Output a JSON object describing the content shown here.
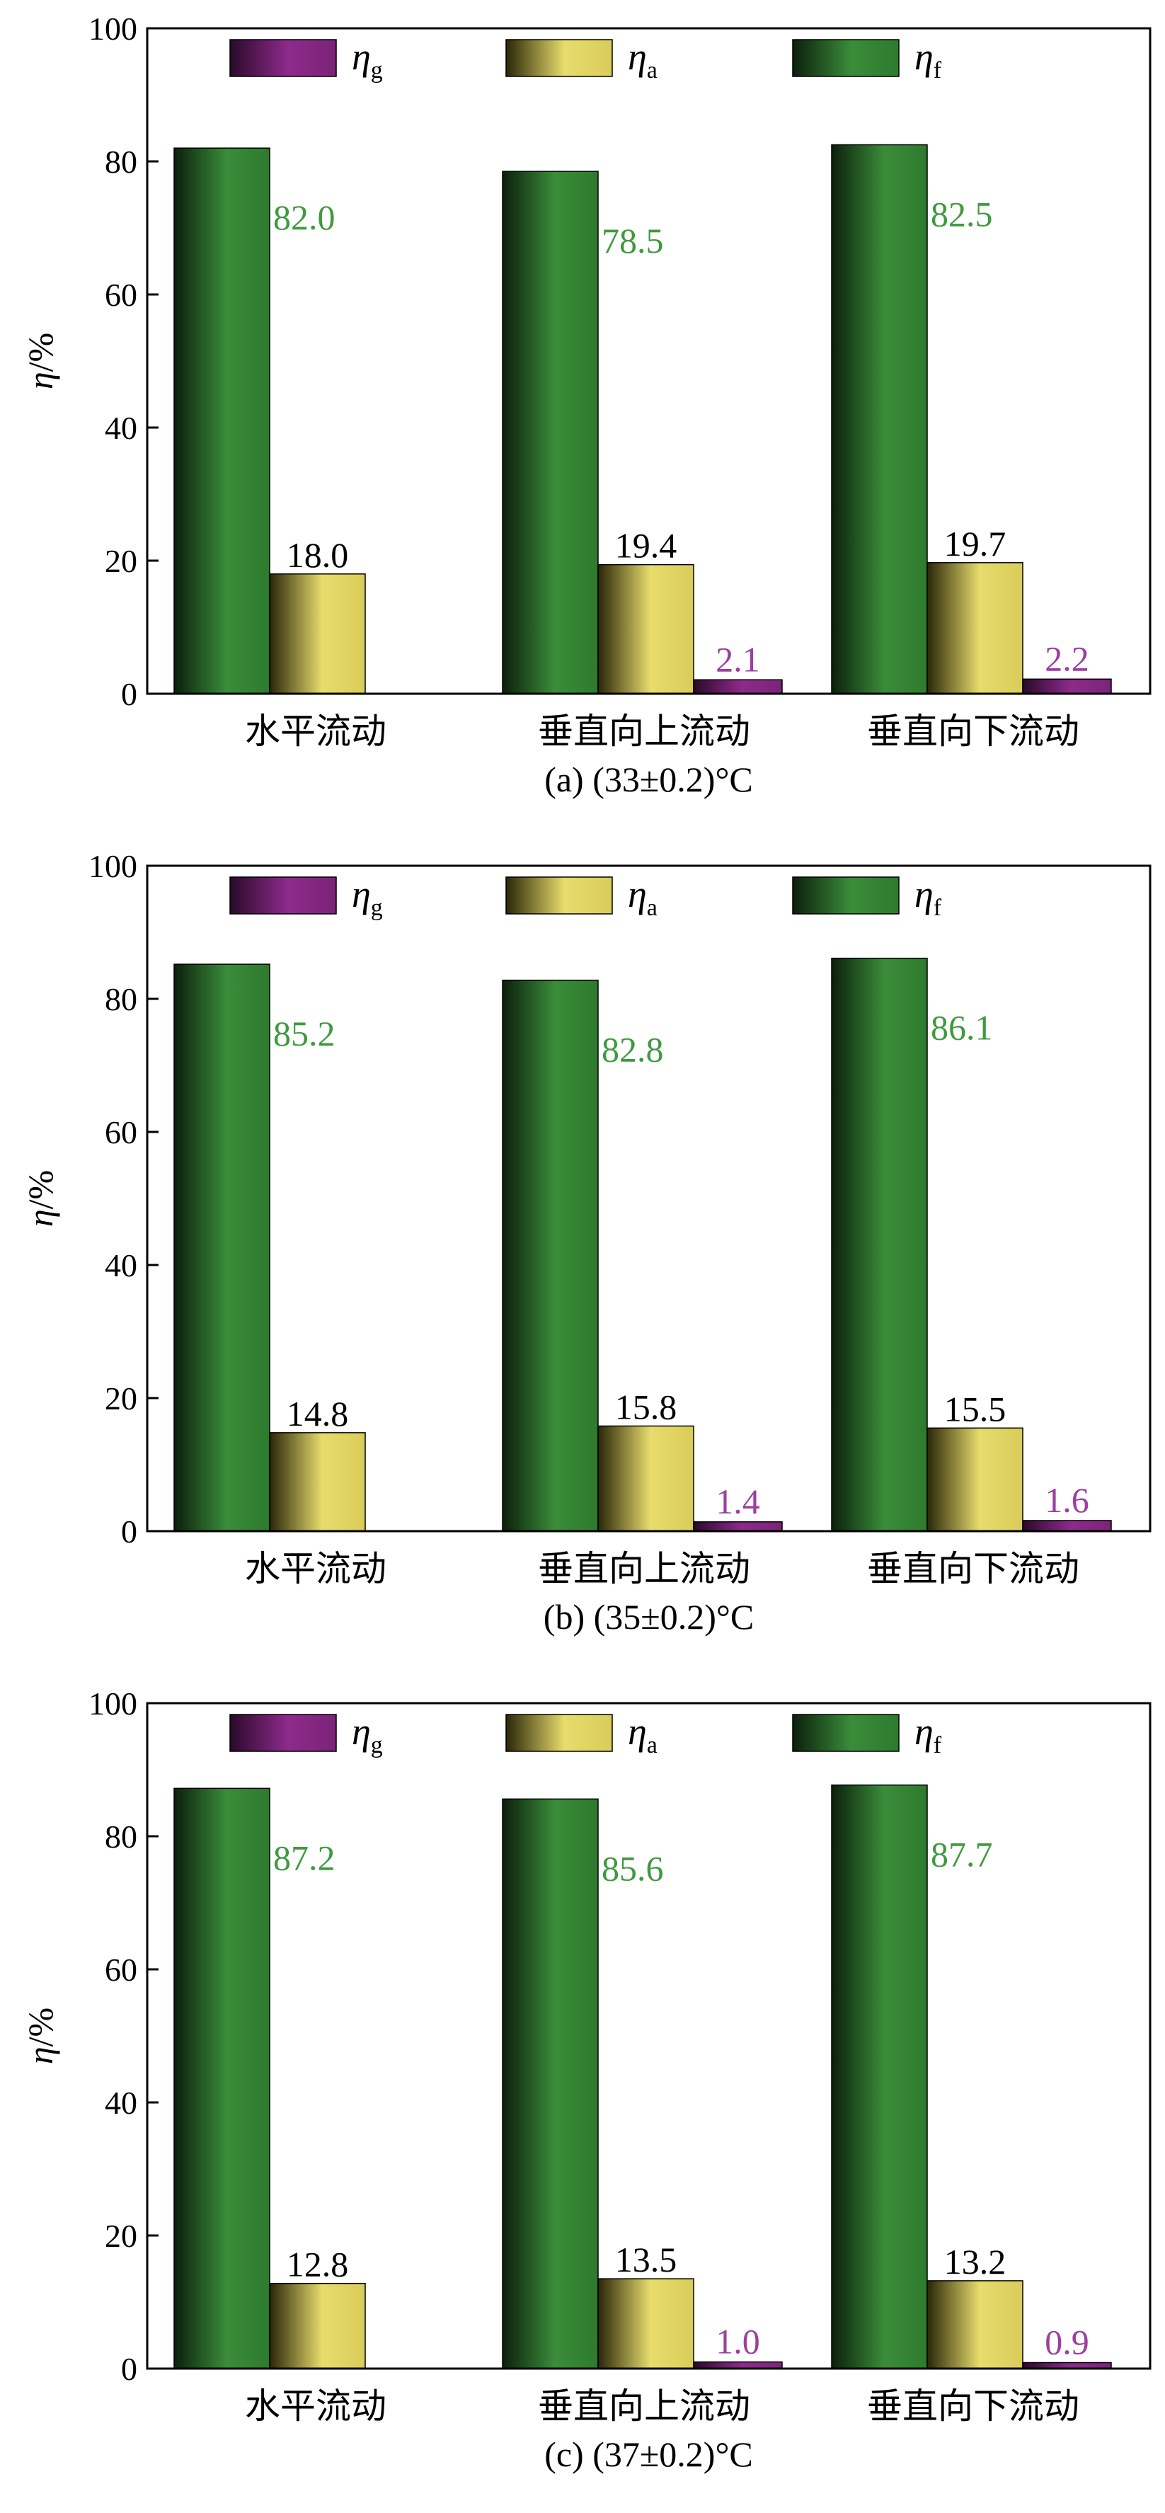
{
  "colors": {
    "eta_g": "#8e2a8c",
    "eta_a": "#e7dc6c",
    "eta_f": "#3a8c3a",
    "label_g": "#9b3fa0",
    "label_a": "#000000",
    "label_f": "#3f9a3f"
  },
  "legend": {
    "eta_g": {
      "symbol": "η",
      "sub": "g"
    },
    "eta_a": {
      "symbol": "η",
      "sub": "a"
    },
    "eta_f": {
      "symbol": "η",
      "sub": "f"
    }
  },
  "chart_data": [
    {
      "type": "bar",
      "caption": "(a) (33±0.2)°C",
      "ylabel": "η/%",
      "ylim": [
        0,
        100
      ],
      "yticks": [
        "0",
        "20",
        "40",
        "60",
        "80",
        "100"
      ],
      "categories": [
        "水平流动",
        "垂直向上流动",
        "垂直向下流动"
      ],
      "series": [
        {
          "key": "eta_f",
          "name": "ηf",
          "values": [
            82.0,
            78.5,
            82.5
          ],
          "labels": [
            "82.0",
            "78.5",
            "82.5"
          ]
        },
        {
          "key": "eta_a",
          "name": "ηa",
          "values": [
            18.0,
            19.4,
            19.7
          ],
          "labels": [
            "18.0",
            "19.4",
            "19.7"
          ]
        },
        {
          "key": "eta_g",
          "name": "ηg",
          "values": [
            null,
            2.1,
            2.2
          ],
          "labels": [
            "",
            "2.1",
            "2.2"
          ]
        }
      ]
    },
    {
      "type": "bar",
      "caption": "(b) (35±0.2)°C",
      "ylabel": "η/%",
      "ylim": [
        0,
        100
      ],
      "yticks": [
        "0",
        "20",
        "40",
        "60",
        "80",
        "100"
      ],
      "categories": [
        "水平流动",
        "垂直向上流动",
        "垂直向下流动"
      ],
      "series": [
        {
          "key": "eta_f",
          "name": "ηf",
          "values": [
            85.2,
            82.8,
            86.1
          ],
          "labels": [
            "85.2",
            "82.8",
            "86.1"
          ]
        },
        {
          "key": "eta_a",
          "name": "ηa",
          "values": [
            14.8,
            15.8,
            15.5
          ],
          "labels": [
            "14.8",
            "15.8",
            "15.5"
          ]
        },
        {
          "key": "eta_g",
          "name": "ηg",
          "values": [
            null,
            1.4,
            1.6
          ],
          "labels": [
            "",
            "1.4",
            "1.6"
          ]
        }
      ]
    },
    {
      "type": "bar",
      "caption": "(c) (37±0.2)°C",
      "ylabel": "η/%",
      "ylim": [
        0,
        100
      ],
      "yticks": [
        "0",
        "20",
        "40",
        "60",
        "80",
        "100"
      ],
      "categories": [
        "水平流动",
        "垂直向上流动",
        "垂直向下流动"
      ],
      "series": [
        {
          "key": "eta_f",
          "name": "ηf",
          "values": [
            87.2,
            85.6,
            87.7
          ],
          "labels": [
            "87.2",
            "85.6",
            "87.7"
          ]
        },
        {
          "key": "eta_a",
          "name": "ηa",
          "values": [
            12.8,
            13.5,
            13.2
          ],
          "labels": [
            "12.8",
            "13.5",
            "13.2"
          ]
        },
        {
          "key": "eta_g",
          "name": "ηg",
          "values": [
            null,
            1.0,
            0.9
          ],
          "labels": [
            "",
            "1.0",
            "0.9"
          ]
        }
      ]
    }
  ]
}
